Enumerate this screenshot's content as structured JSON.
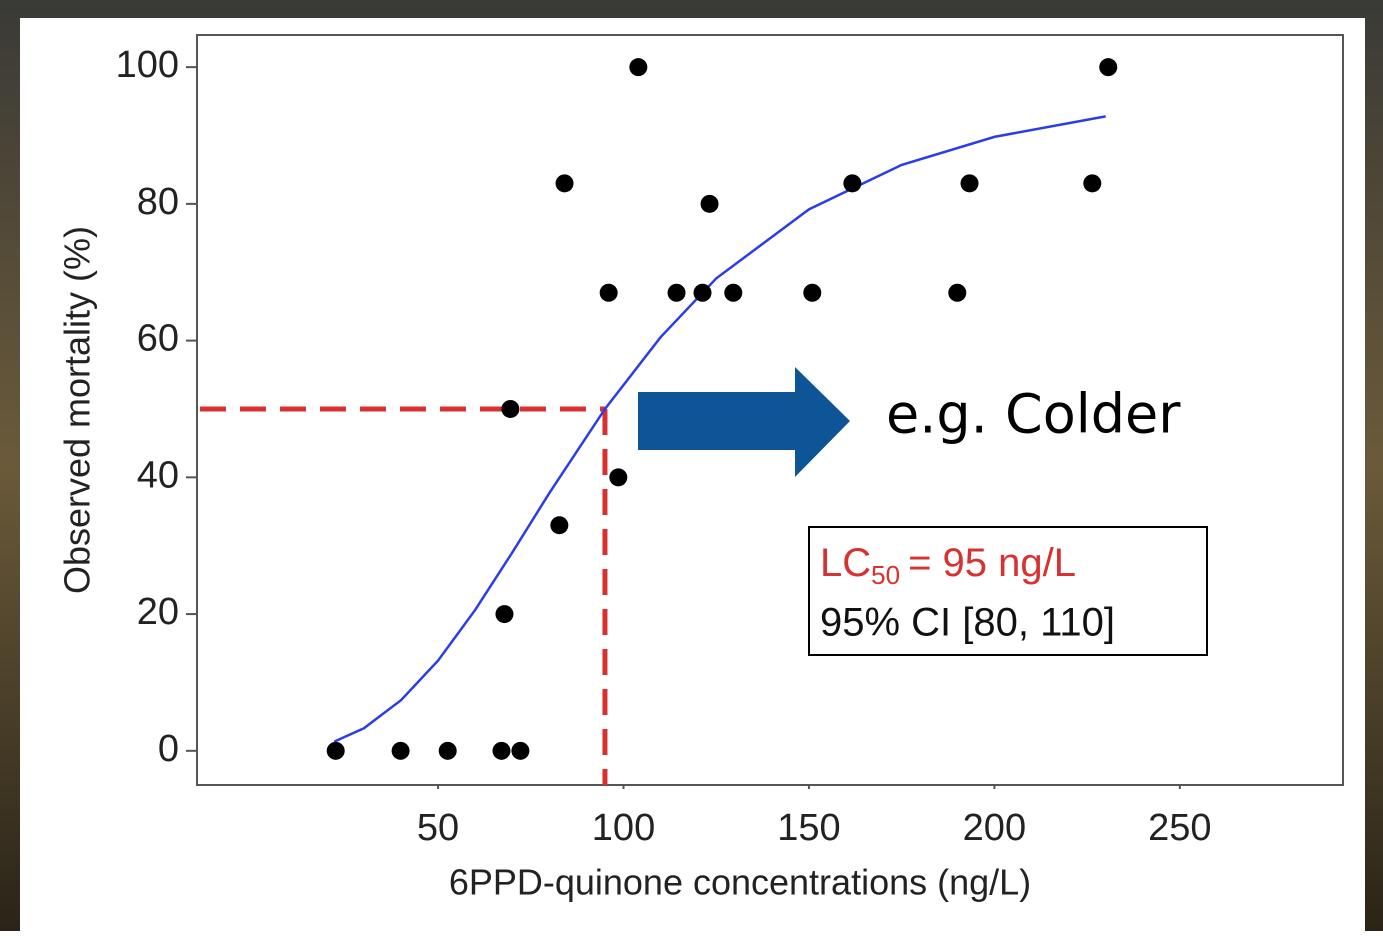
{
  "chart_data": {
    "type": "scatter",
    "x_label": "6PPD-quinone concentrations (ng/L)",
    "y_label": "Observed mortality (%)",
    "xlim": [
      -15,
      294
    ],
    "ylim": [
      -5,
      104.7
    ],
    "xticks": [
      50,
      100,
      150,
      200,
      250
    ],
    "yticks": [
      0,
      20,
      40,
      60,
      80,
      100
    ],
    "points": {
      "color": "#000000",
      "x": [
        22.4,
        39.9,
        52.6,
        67.1,
        72.2,
        67.9,
        69.5,
        82.7,
        98.6,
        84.1,
        96,
        104,
        114.3,
        121.3,
        123.2,
        129.6,
        150.9,
        161.7,
        190,
        193.3,
        226.4,
        230.7
      ],
      "y": [
        0,
        0,
        0,
        0,
        0,
        20,
        50,
        33,
        40,
        83,
        67,
        100,
        67,
        67,
        80,
        67,
        67,
        83,
        67,
        83,
        83,
        100
      ]
    },
    "curve": {
      "color": "#2b3de8",
      "x": [
        22,
        30,
        40,
        50,
        60,
        70,
        80,
        95,
        110,
        125,
        150,
        175,
        200,
        230
      ],
      "y": [
        1.35,
        3.3,
        7.4,
        13.2,
        20.6,
        29.0,
        37.7,
        50,
        60.5,
        69.1,
        79.2,
        85.7,
        89.8,
        92.8
      ]
    },
    "reference": {
      "x": 95,
      "y": 50,
      "color": "#d93030"
    },
    "annotations": {
      "lc_main": "LC",
      "lc_sub": "50",
      "lc_rest": "= 95 ng/L",
      "ci": "95% CI [80, 110]",
      "arrow_text": "e.g. Colder"
    }
  }
}
